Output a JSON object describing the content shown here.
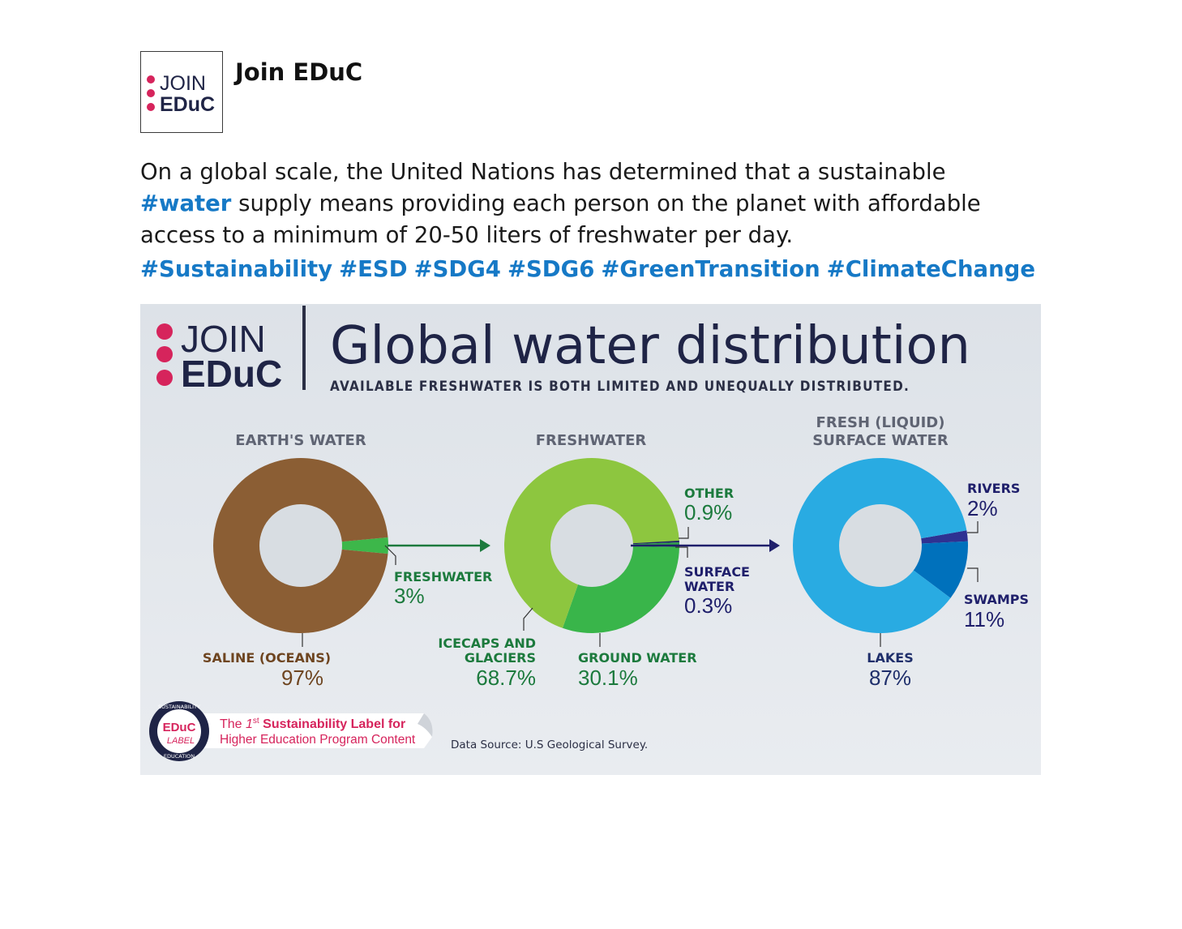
{
  "post": {
    "author": "Join EDuC",
    "avatar_logo": {
      "line1": "JOIN",
      "line2": "EDuC"
    },
    "text_before": "On a global scale, the United Nations has determined that a sustainable ",
    "text_hashtag": "#water",
    "text_after": " supply means providing each person on the planet with affordable access to a minimum of 20-50 liters of freshwater per day.",
    "hashtags": [
      "#Sustainability",
      "#ESD",
      "#SDG4",
      "#SDG6",
      "#GreenTransition",
      "#ClimateChange"
    ]
  },
  "infographic": {
    "logo": {
      "line1": "JOIN",
      "line2": "EDuC"
    },
    "title": "Global water distribution",
    "subtitle": "AVAILABLE FRESHWATER IS BOTH LIMITED AND UNEQUALLY DISTRIBUTED.",
    "footer_badge": {
      "ring_top": "SUSTAINABILITY",
      "ring_bottom": "EDUCATION",
      "center1": "EDuC",
      "center2": "LABEL",
      "tag_prefix": "The ",
      "tag_num": "1",
      "tag_sup": "st",
      "tag_line1_rest": " Sustainability Label for",
      "tag_line2": "Higher Education Program Content"
    },
    "source": "Data Source: U.S Geological Survey."
  },
  "chart_data": [
    {
      "type": "pie",
      "title": "EARTH'S WATER",
      "slices": [
        {
          "name": "SALINE (OCEANS)",
          "value": 97,
          "label": "97%",
          "color": "#8b5e34"
        },
        {
          "name": "FRESHWATER",
          "value": 3,
          "label": "3%",
          "color": "#3db74a"
        }
      ]
    },
    {
      "type": "pie",
      "title": "FRESHWATER",
      "slices": [
        {
          "name": "ICECAPS AND GLACIERS",
          "value": 68.7,
          "label": "68.7%",
          "color": "#8dc63f"
        },
        {
          "name": "GROUND WATER",
          "value": 30.1,
          "label": "30.1%",
          "color": "#39b54a"
        },
        {
          "name": "OTHER",
          "value": 0.9,
          "label": "0.9%",
          "color": "#2f9e49"
        },
        {
          "name": "SURFACE WATER",
          "value": 0.3,
          "label": "0.3%",
          "color": "#1f1f6b"
        }
      ]
    },
    {
      "type": "pie",
      "title": "FRESH (LIQUID) SURFACE WATER",
      "slices": [
        {
          "name": "LAKES",
          "value": 87,
          "label": "87%",
          "color": "#29abe2"
        },
        {
          "name": "RIVERS",
          "value": 2,
          "label": "2%",
          "color": "#2e3192"
        },
        {
          "name": "SWAMPS",
          "value": 11,
          "label": "11%",
          "color": "#0071bc"
        }
      ]
    }
  ],
  "colors": {
    "brand_pink": "#d6245c",
    "brand_navy": "#1f2446",
    "hashtag_blue": "#1679c6",
    "saline_label": "#6e4520",
    "fresh_label": "#1c7a3d",
    "surface_label": "#1f1f6b",
    "lake_label": "#1f2f6b"
  }
}
